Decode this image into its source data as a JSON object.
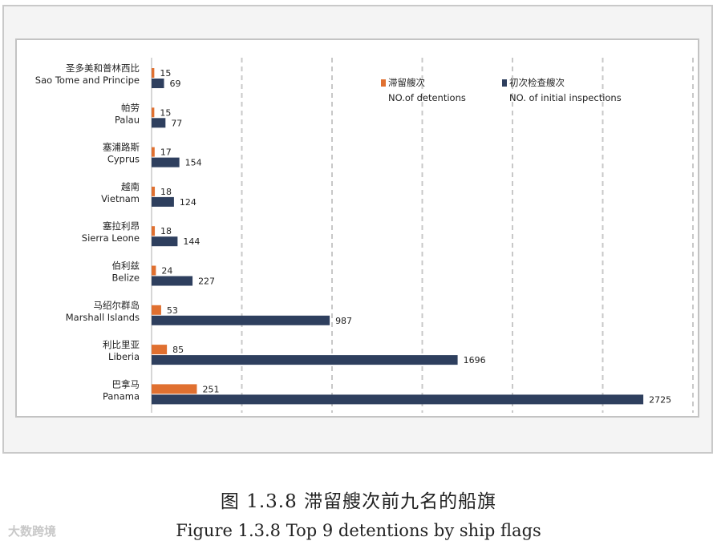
{
  "chart_data": {
    "type": "bar",
    "orientation": "horizontal",
    "categories": [
      {
        "zh": "圣多美和普林西比",
        "en": "Sao Tome and Principe"
      },
      {
        "zh": "帕劳",
        "en": "Palau"
      },
      {
        "zh": "塞浦路斯",
        "en": "Cyprus"
      },
      {
        "zh": "越南",
        "en": "Vietnam"
      },
      {
        "zh": "塞拉利昂",
        "en": "Sierra Leone"
      },
      {
        "zh": "伯利兹",
        "en": "Belize"
      },
      {
        "zh": "马绍尔群岛",
        "en": "Marshall Islands"
      },
      {
        "zh": "利比里亚",
        "en": "Liberia"
      },
      {
        "zh": "巴拿马",
        "en": "Panama"
      }
    ],
    "series": [
      {
        "name_zh": "滞留艘次",
        "name_en": "NO.of detentions",
        "color": "#E07030",
        "values": [
          15,
          15,
          17,
          18,
          18,
          24,
          53,
          85,
          251
        ]
      },
      {
        "name_zh": "初次检查艘次",
        "name_en": "NO. of initial inspections",
        "color": "#2E3F5E",
        "values": [
          69,
          77,
          154,
          124,
          144,
          227,
          987,
          1696,
          2725
        ]
      }
    ],
    "xlim": [
      0,
      3000
    ],
    "grid": "vertical dashed",
    "legend_position": "top-right"
  },
  "caption": {
    "zh": "图 1.3.8 滞留艘次前九名的船旗",
    "en": "Figure 1.3.8 Top 9 detentions by ship flags"
  },
  "watermark": "大数跨境"
}
